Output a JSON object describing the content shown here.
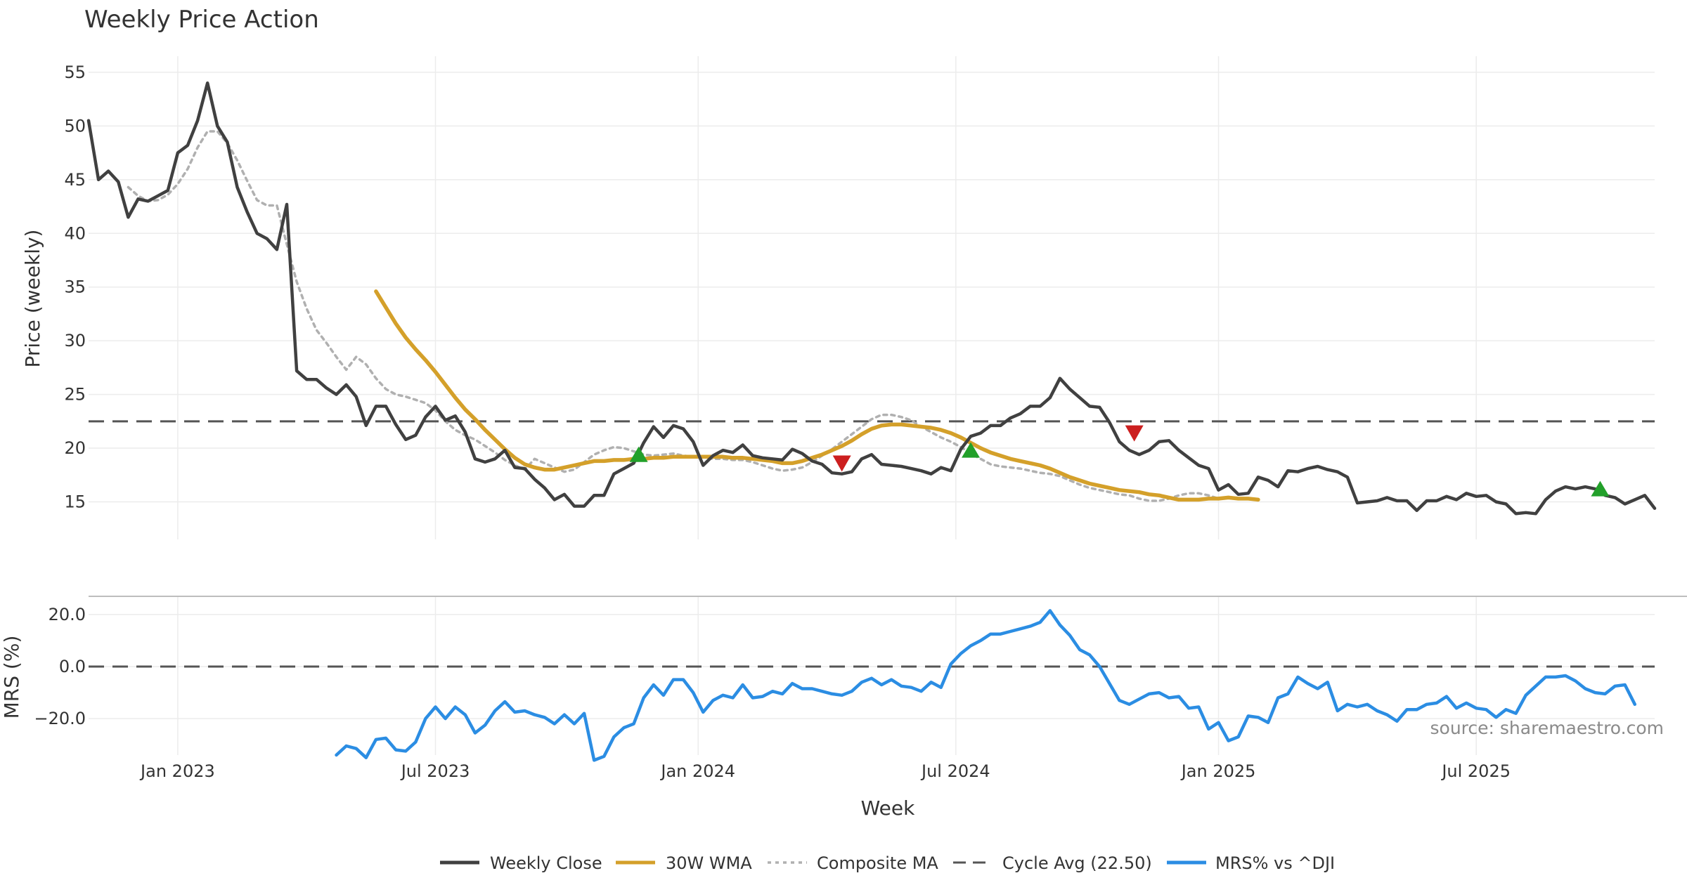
{
  "chart_data": {
    "type": "line",
    "title": "Weekly Price Action",
    "xlabel": "Week",
    "ylabel": "Price (weekly)",
    "ylabel_lower": "MRS (%)",
    "ylim": [
      11.5,
      56.5
    ],
    "yticks": [
      15,
      20,
      25,
      30,
      35,
      40,
      45,
      50,
      55
    ],
    "ylim_lower": [
      -34,
      27
    ],
    "yticks_lower": [
      -20,
      0,
      20
    ],
    "yticks_lower_labels": [
      "−20.0",
      "0.0",
      "20.0"
    ],
    "x_tick_labels": [
      "Jan 2023",
      "Jul 2023",
      "Jan 2024",
      "Jul 2024",
      "Jan 2025",
      "Jul 2025"
    ],
    "x_tick_weeks": [
      9,
      35,
      61.5,
      87.5,
      114,
      140
    ],
    "x_range_weeks": [
      0,
      158
    ],
    "grid": true,
    "legend_position": "bottom-center",
    "source": "source: sharemaestro.com",
    "cycle_avg": 22.5,
    "series": [
      {
        "name": "Weekly Close",
        "color": "#404040",
        "style": "solid",
        "values": [
          50.5,
          45.0,
          45.8,
          44.8,
          41.5,
          43.2,
          43.0,
          43.5,
          44.0,
          47.5,
          48.2,
          50.5,
          54.0,
          50.0,
          48.5,
          44.3,
          42.0,
          40.0,
          39.5,
          38.5,
          42.7,
          27.2,
          26.4,
          26.4,
          25.6,
          25.0,
          25.9,
          24.8,
          22.1,
          23.9,
          23.9,
          22.2,
          20.8,
          21.2,
          22.9,
          23.9,
          22.6,
          23.0,
          21.5,
          19.0,
          18.7,
          19.0,
          19.8,
          18.2,
          18.1,
          17.1,
          16.3,
          15.2,
          15.7,
          14.6,
          14.6,
          15.6,
          15.6,
          17.6,
          18.1,
          18.6,
          20.5,
          22.0,
          21.0,
          22.1,
          21.8,
          20.6,
          18.4,
          19.3,
          19.8,
          19.6,
          20.3,
          19.3,
          19.1,
          19.0,
          18.9,
          19.9,
          19.5,
          18.8,
          18.5,
          17.7,
          17.6,
          17.8,
          19.0,
          19.4,
          18.5,
          18.4,
          18.3,
          18.1,
          17.9,
          17.6,
          18.2,
          17.9,
          19.9,
          21.1,
          21.4,
          22.1,
          22.1,
          22.8,
          23.2,
          23.9,
          23.9,
          24.7,
          26.5,
          25.5,
          24.7,
          23.9,
          23.8,
          22.4,
          20.6,
          19.8,
          19.4,
          19.8,
          20.6,
          20.7,
          19.8,
          19.1,
          18.4,
          18.1,
          16.1,
          16.6,
          15.7,
          15.8,
          17.3,
          17.0,
          16.4,
          17.9,
          17.8,
          18.1,
          18.3,
          18.0,
          17.8,
          17.3,
          14.9,
          15.0,
          15.1,
          15.4,
          15.1,
          15.1,
          14.2,
          15.1,
          15.1,
          15.5,
          15.2,
          15.8,
          15.5,
          15.6,
          15.0,
          14.8,
          13.9,
          14.0,
          13.9,
          15.2,
          16.0,
          16.4,
          16.2,
          16.4,
          16.2,
          15.6,
          15.4,
          14.8,
          15.2,
          15.6,
          14.4
        ]
      },
      {
        "name": "30W WMA",
        "color": "#d4a02a",
        "style": "solid",
        "start_week": 29,
        "values": [
          34.6,
          33.1,
          31.6,
          30.3,
          29.2,
          28.2,
          27.1,
          25.9,
          24.7,
          23.6,
          22.7,
          21.7,
          20.8,
          19.9,
          19.1,
          18.5,
          18.2,
          18.0,
          18.0,
          18.2,
          18.4,
          18.6,
          18.8,
          18.8,
          18.9,
          18.9,
          19.0,
          19.0,
          19.1,
          19.1,
          19.2,
          19.2,
          19.2,
          19.2,
          19.2,
          19.2,
          19.1,
          19.1,
          19.0,
          18.9,
          18.8,
          18.6,
          18.6,
          18.8,
          19.1,
          19.4,
          19.8,
          20.2,
          20.7,
          21.3,
          21.8,
          22.1,
          22.2,
          22.2,
          22.1,
          22.0,
          21.9,
          21.7,
          21.4,
          21.0,
          20.5,
          20.0,
          19.6,
          19.3,
          19.0,
          18.8,
          18.6,
          18.4,
          18.1,
          17.7,
          17.3,
          17.0,
          16.7,
          16.5,
          16.3,
          16.1,
          16.0,
          15.9,
          15.7,
          15.6,
          15.4,
          15.2,
          15.2,
          15.2,
          15.3,
          15.3,
          15.4,
          15.3,
          15.3,
          15.2
        ]
      },
      {
        "name": "Composite MA",
        "color": "#b0b0b0",
        "style": "dotted",
        "start_week": 4,
        "values": [
          44.3,
          43.5,
          43.0,
          43.1,
          43.6,
          44.6,
          46.0,
          48.0,
          49.5,
          49.5,
          48.4,
          46.8,
          44.9,
          43.1,
          42.6,
          42.6,
          39.0,
          35.5,
          33.0,
          31.0,
          29.8,
          28.5,
          27.3,
          28.5,
          27.8,
          26.5,
          25.5,
          25.0,
          24.8,
          24.5,
          24.2,
          23.5,
          22.5,
          21.7,
          21.2,
          20.8,
          20.2,
          19.6,
          18.9,
          18.4,
          18.0,
          19.0,
          18.6,
          18.2,
          17.8,
          18.0,
          18.7,
          19.4,
          19.8,
          20.1,
          20.0,
          19.7,
          19.4,
          19.3,
          19.4,
          19.5,
          19.3,
          19.2,
          19.2,
          19.0,
          19.0,
          18.9,
          18.9,
          18.7,
          18.4,
          18.1,
          17.9,
          18.0,
          18.2,
          18.7,
          19.3,
          19.9,
          20.6,
          21.3,
          22.0,
          22.7,
          23.1,
          23.1,
          22.9,
          22.6,
          22.0,
          21.5,
          21.0,
          20.6,
          20.1,
          19.5,
          19.0,
          18.5,
          18.3,
          18.2,
          18.1,
          17.9,
          17.7,
          17.6,
          17.4,
          17.0,
          16.6,
          16.3,
          16.1,
          15.9,
          15.7,
          15.6,
          15.3,
          15.1,
          15.1,
          15.3,
          15.6,
          15.8,
          15.8,
          15.6,
          15.3
        ]
      },
      {
        "name": "Cycle Avg (22.50)",
        "color": "#555555",
        "style": "dashed"
      },
      {
        "name": "MRS% vs ^DJI",
        "color": "#2b8de3",
        "style": "solid",
        "start_week": 25,
        "values": [
          -34,
          -30.5,
          -31.5,
          -35,
          -28,
          -27.5,
          -32,
          -32.5,
          -29,
          -20,
          -15.5,
          -20,
          -15.5,
          -18.5,
          -25.5,
          -22.5,
          -17,
          -13.5,
          -17.5,
          -17,
          -18.5,
          -19.5,
          -22,
          -18.5,
          -22,
          -18,
          -36,
          -34.5,
          -27,
          -23.5,
          -22,
          -12,
          -7,
          -11,
          -5,
          -5,
          -10,
          -17.5,
          -13,
          -11,
          -12,
          -7,
          -12,
          -11.5,
          -9.5,
          -10.5,
          -6.5,
          -8.5,
          -8.5,
          -9.5,
          -10.5,
          -11,
          -9.5,
          -6,
          -4.5,
          -7,
          -5,
          -7.5,
          -8,
          -9.5,
          -6,
          -8,
          1,
          5,
          8,
          10,
          12.5,
          12.5,
          13.5,
          14.5,
          15.5,
          17,
          21.5,
          16,
          12,
          6.5,
          4.5,
          0,
          -6.5,
          -13,
          -14.5,
          -12.5,
          -10.5,
          -10,
          -12,
          -11.5,
          -16,
          -15.5,
          -24,
          -21.5,
          -28.5,
          -27,
          -19,
          -19.5,
          -21.5,
          -12,
          -10.5,
          -4,
          -6.5,
          -8.5,
          -6,
          -17,
          -14.5,
          -15.5,
          -14.5,
          -17,
          -18.5,
          -21,
          -16.5,
          -16.5,
          -14.5,
          -14,
          -11.5,
          -16,
          -14,
          -16,
          -16.5,
          -19.5,
          -16.5,
          -18,
          -11,
          -7.5,
          -4,
          -4,
          -3.5,
          -5.5,
          -8.5,
          -10,
          -10.5,
          -7.5,
          -7,
          -14.5
        ]
      }
    ],
    "signals": [
      {
        "type": "buy",
        "week": 55.5,
        "value": 19.3,
        "color": "#22a02a"
      },
      {
        "type": "sell",
        "week": 76,
        "value": 18.6,
        "color": "#cc1f1f"
      },
      {
        "type": "buy",
        "week": 89,
        "value": 19.7,
        "color": "#22a02a"
      },
      {
        "type": "sell",
        "week": 105.5,
        "value": 21.4,
        "color": "#cc1f1f"
      },
      {
        "type": "buy",
        "week": 152.5,
        "value": 16.1,
        "color": "#22a02a"
      }
    ]
  }
}
